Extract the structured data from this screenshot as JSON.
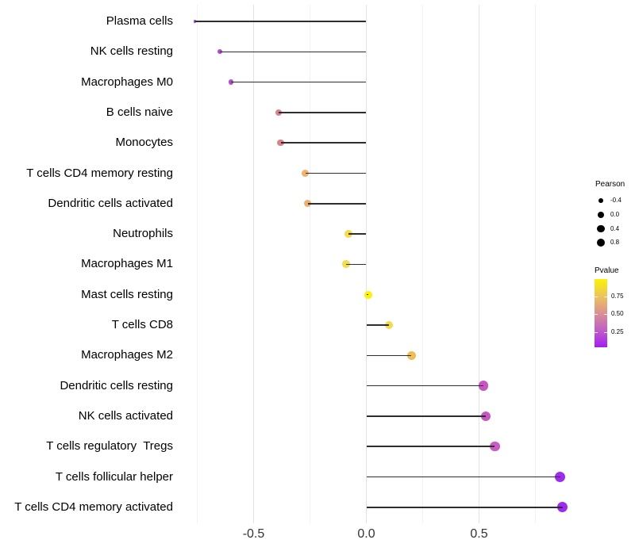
{
  "chart_data": {
    "type": "lollipop",
    "orientation": "horizontal",
    "title": "",
    "xlabel": "",
    "ylabel": "",
    "baseline": 0,
    "x_axis": {
      "xlim": [
        -0.8,
        0.95
      ],
      "major_ticks": [
        -0.5,
        0.0,
        0.5
      ],
      "major_tick_labels": [
        "-0.5",
        "0.0",
        "0.5"
      ],
      "minor_gridlines": [
        -0.75,
        -0.25,
        0.25,
        0.75
      ],
      "grid": "vertical-only"
    },
    "rows": [
      {
        "label": "Plasma cells",
        "pearson": -0.76,
        "dot_color": "#A53BD0"
      },
      {
        "label": "NK cells resting",
        "pearson": -0.65,
        "dot_color": "#B14EC9"
      },
      {
        "label": "Macrophages M0",
        "pearson": -0.6,
        "dot_color": "#B150CB"
      },
      {
        "label": "B cells naive",
        "pearson": -0.39,
        "dot_color": "#D8838D"
      },
      {
        "label": "Monocytes",
        "pearson": -0.38,
        "dot_color": "#D8828B"
      },
      {
        "label": "T cells CD4 memory resting",
        "pearson": -0.27,
        "dot_color": "#EFB271"
      },
      {
        "label": "Dendritic cells activated",
        "pearson": -0.26,
        "dot_color": "#EEAE74"
      },
      {
        "label": "Neutrophils",
        "pearson": -0.08,
        "dot_color": "#F1DD4E"
      },
      {
        "label": "Macrophages M1",
        "pearson": -0.09,
        "dot_color": "#F1DD4E"
      },
      {
        "label": "Mast cells resting",
        "pearson": 0.01,
        "dot_color": "#FBF204"
      },
      {
        "label": "T cells CD8",
        "pearson": 0.1,
        "dot_color": "#F2DC49"
      },
      {
        "label": "Macrophages M2",
        "pearson": 0.2,
        "dot_color": "#ECBE57"
      },
      {
        "label": "Dendritic cells resting",
        "pearson": 0.52,
        "dot_color": "#C754C1"
      },
      {
        "label": "NK cells activated",
        "pearson": 0.53,
        "dot_color": "#C657BF"
      },
      {
        "label": "T cells regulatory  Tregs",
        "pearson": 0.57,
        "dot_color": "#C95BC5"
      },
      {
        "label": "T cells follicular helper",
        "pearson": 0.86,
        "dot_color": "#9D2CEE"
      },
      {
        "label": "T cells CD4 memory activated",
        "pearson": 0.87,
        "dot_color": "#9D2AEF"
      }
    ],
    "legends": {
      "pearson": {
        "title": "Pearson",
        "dot_color": "#000000",
        "entries": [
          {
            "label": "-0.4",
            "radius": 3.3
          },
          {
            "label": "0.0",
            "radius": 4.0
          },
          {
            "label": "0.4",
            "radius": 4.6
          },
          {
            "label": "0.8",
            "radius": 5.1
          }
        ]
      },
      "pvalue": {
        "title": "Pvalue",
        "tick_labels": [
          "0.75",
          "0.50",
          "0.25"
        ],
        "tick_values": [
          0.75,
          0.5,
          0.25
        ],
        "bar_value_range_top_to_bottom": [
          0.99,
          0.04
        ],
        "gradient_top_to_bottom": [
          "#FBF303",
          "#EDC35C",
          "#DA9093",
          "#C05EC8",
          "#A21DF0"
        ]
      }
    },
    "style_colors": {
      "stem": "#2E2E2E",
      "grid_major": "#E3E3E3",
      "grid_minor": "#F2F2F2",
      "axis_tick_text": "#333333",
      "category_text": "#000000",
      "background": "#FFFFFF"
    }
  }
}
